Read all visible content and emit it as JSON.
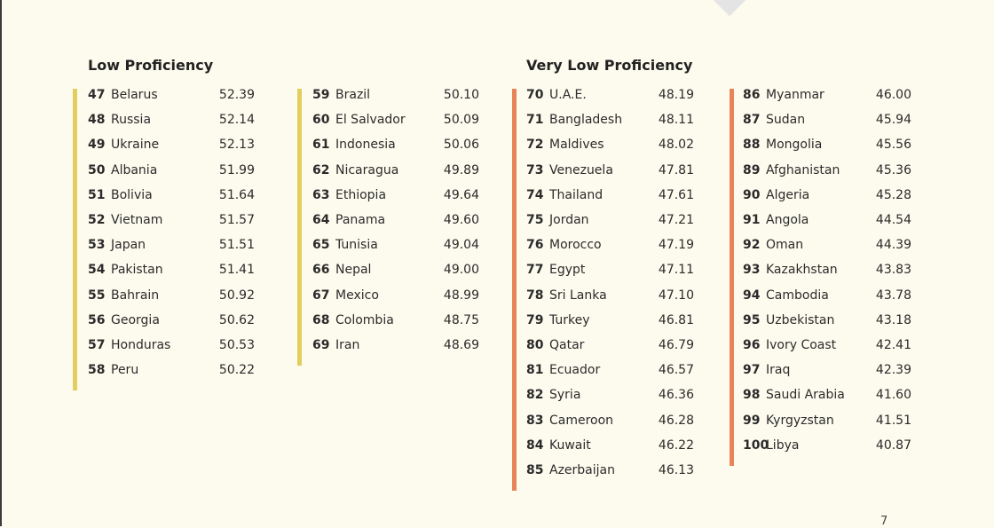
{
  "sections": [
    {
      "title": "Low Proficiency",
      "columns": [
        [
          {
            "rank": "47",
            "country": "Belarus",
            "score": "52.39"
          },
          {
            "rank": "48",
            "country": "Russia",
            "score": "52.14"
          },
          {
            "rank": "49",
            "country": "Ukraine",
            "score": "52.13"
          },
          {
            "rank": "50",
            "country": "Albania",
            "score": "51.99"
          },
          {
            "rank": "51",
            "country": "Bolivia",
            "score": "51.64"
          },
          {
            "rank": "52",
            "country": "Vietnam",
            "score": "51.57"
          },
          {
            "rank": "53",
            "country": "Japan",
            "score": "51.51"
          },
          {
            "rank": "54",
            "country": "Pakistan",
            "score": "51.41"
          },
          {
            "rank": "55",
            "country": "Bahrain",
            "score": "50.92"
          },
          {
            "rank": "56",
            "country": "Georgia",
            "score": "50.62"
          },
          {
            "rank": "57",
            "country": "Honduras",
            "score": "50.53"
          },
          {
            "rank": "58",
            "country": "Peru",
            "score": "50.22"
          }
        ],
        [
          {
            "rank": "59",
            "country": "Brazil",
            "score": "50.10"
          },
          {
            "rank": "60",
            "country": "El Salvador",
            "score": "50.09"
          },
          {
            "rank": "61",
            "country": "Indonesia",
            "score": "50.06"
          },
          {
            "rank": "62",
            "country": "Nicaragua",
            "score": "49.89"
          },
          {
            "rank": "63",
            "country": "Ethiopia",
            "score": "49.64"
          },
          {
            "rank": "64",
            "country": "Panama",
            "score": "49.60"
          },
          {
            "rank": "65",
            "country": "Tunisia",
            "score": "49.04"
          },
          {
            "rank": "66",
            "country": "Nepal",
            "score": "49.00"
          },
          {
            "rank": "67",
            "country": "Mexico",
            "score": "48.99"
          },
          {
            "rank": "68",
            "country": "Colombia",
            "score": "48.75"
          },
          {
            "rank": "69",
            "country": "Iran",
            "score": "48.69"
          }
        ]
      ]
    },
    {
      "title": "Very Low Proficiency",
      "columns": [
        [
          {
            "rank": "70",
            "country": "U.A.E.",
            "score": "48.19"
          },
          {
            "rank": "71",
            "country": "Bangladesh",
            "score": "48.11"
          },
          {
            "rank": "72",
            "country": "Maldives",
            "score": "48.02"
          },
          {
            "rank": "73",
            "country": "Venezuela",
            "score": "47.81"
          },
          {
            "rank": "74",
            "country": "Thailand",
            "score": "47.61"
          },
          {
            "rank": "75",
            "country": "Jordan",
            "score": "47.21"
          },
          {
            "rank": "76",
            "country": "Morocco",
            "score": "47.19"
          },
          {
            "rank": "77",
            "country": "Egypt",
            "score": "47.11"
          },
          {
            "rank": "78",
            "country": "Sri Lanka",
            "score": "47.10"
          },
          {
            "rank": "79",
            "country": "Turkey",
            "score": "46.81"
          },
          {
            "rank": "80",
            "country": "Qatar",
            "score": "46.79"
          },
          {
            "rank": "81",
            "country": "Ecuador",
            "score": "46.57"
          },
          {
            "rank": "82",
            "country": "Syria",
            "score": "46.36"
          },
          {
            "rank": "83",
            "country": "Cameroon",
            "score": "46.28"
          },
          {
            "rank": "84",
            "country": "Kuwait",
            "score": "46.22"
          },
          {
            "rank": "85",
            "country": "Azerbaijan",
            "score": "46.13"
          }
        ],
        [
          {
            "rank": "86",
            "country": "Myanmar",
            "score": "46.00"
          },
          {
            "rank": "87",
            "country": "Sudan",
            "score": "45.94"
          },
          {
            "rank": "88",
            "country": "Mongolia",
            "score": "45.56"
          },
          {
            "rank": "89",
            "country": "Afghanistan",
            "score": "45.36"
          },
          {
            "rank": "90",
            "country": "Algeria",
            "score": "45.28"
          },
          {
            "rank": "91",
            "country": "Angola",
            "score": "44.54"
          },
          {
            "rank": "92",
            "country": "Oman",
            "score": "44.39"
          },
          {
            "rank": "93",
            "country": "Kazakhstan",
            "score": "43.83"
          },
          {
            "rank": "94",
            "country": "Cambodia",
            "score": "43.78"
          },
          {
            "rank": "95",
            "country": "Uzbekistan",
            "score": "43.18"
          },
          {
            "rank": "96",
            "country": "Ivory Coast",
            "score": "42.41"
          },
          {
            "rank": "97",
            "country": "Iraq",
            "score": "42.39"
          },
          {
            "rank": "98",
            "country": "Saudi Arabia",
            "score": "41.60"
          },
          {
            "rank": "99",
            "country": "Kyrgyzstan",
            "score": "41.51"
          },
          {
            "rank": "100",
            "country": "Libya",
            "score": "40.87"
          }
        ]
      ]
    }
  ],
  "page_number": "7"
}
